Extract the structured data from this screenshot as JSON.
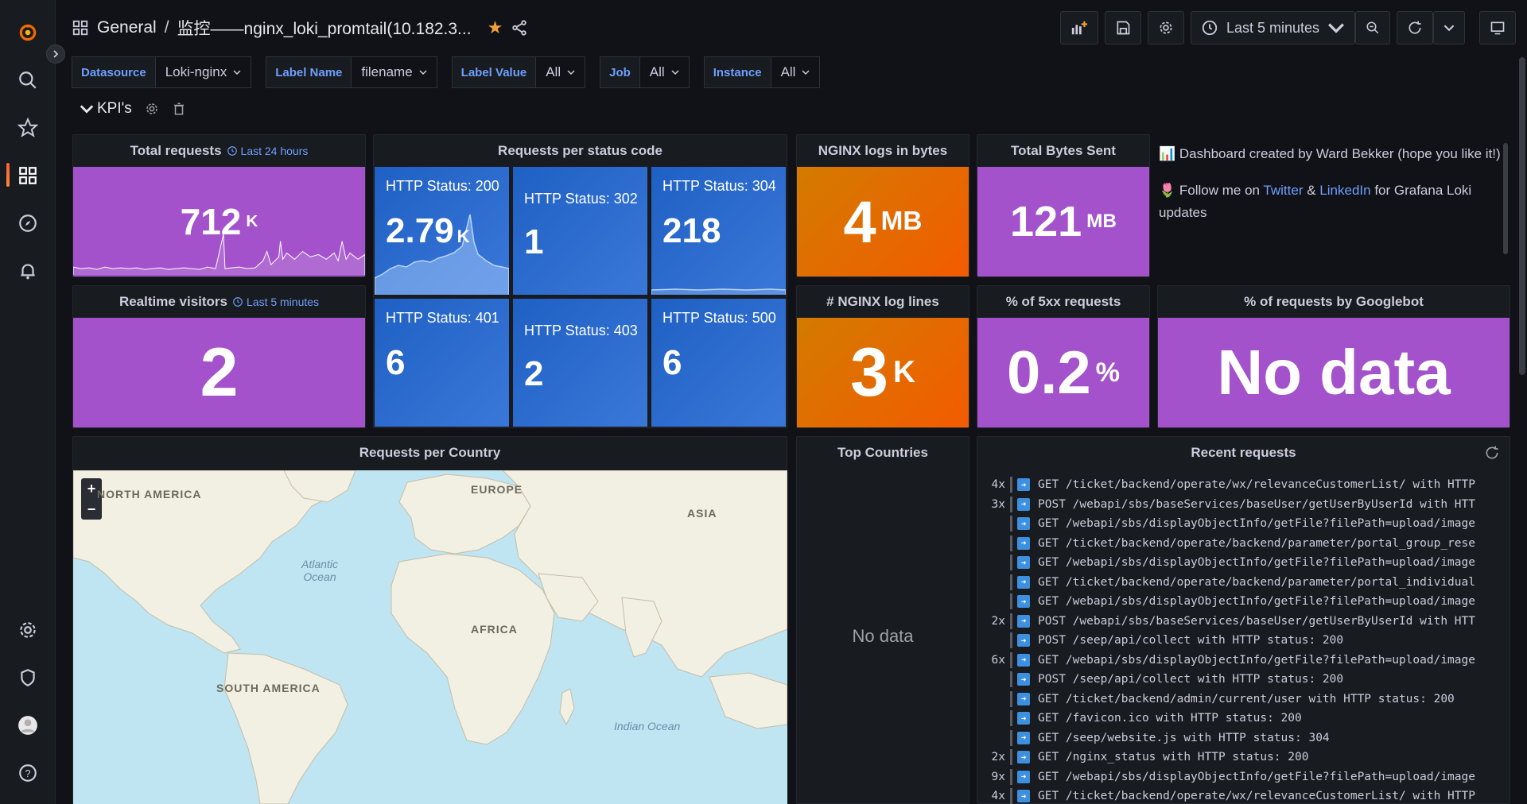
{
  "topbar": {
    "breadcrumb_folder": "General",
    "breadcrumb_sep": "/",
    "dashboard_title": "监控——nginx_loki_promtail(10.182.3...",
    "time_range": "Last 5 minutes"
  },
  "variables": [
    {
      "label": "Datasource",
      "value": "Loki-nginx"
    },
    {
      "label": "Label Name",
      "value": "filename"
    },
    {
      "label": "Label Value",
      "value": "All"
    },
    {
      "label": "Job",
      "value": "All"
    },
    {
      "label": "Instance",
      "value": "All"
    }
  ],
  "row": {
    "title": "KPI's"
  },
  "panels": {
    "total_requests": {
      "title": "Total requests",
      "time_info": "Last 24 hours",
      "value": "712",
      "unit": "K"
    },
    "status_code": {
      "title": "Requests per status code",
      "tiles": [
        {
          "label": "HTTP Status: 200",
          "value": "2.79",
          "unit": "K"
        },
        {
          "label": "HTTP Status: 302",
          "value": "1",
          "unit": ""
        },
        {
          "label": "HTTP Status: 304",
          "value": "218",
          "unit": ""
        },
        {
          "label": "HTTP Status: 401",
          "value": "6",
          "unit": ""
        },
        {
          "label": "HTTP Status: 403",
          "value": "2",
          "unit": ""
        },
        {
          "label": "HTTP Status: 500",
          "value": "6",
          "unit": ""
        }
      ]
    },
    "nginx_bytes": {
      "title": "NGINX logs in bytes",
      "value": "4",
      "unit": "MB"
    },
    "bytes_sent": {
      "title": "Total Bytes Sent",
      "value": "121",
      "unit": "MB"
    },
    "realtime": {
      "title": "Realtime visitors",
      "time_info": "Last 5 minutes",
      "value": "2"
    },
    "log_lines": {
      "title": "# NGINX log lines",
      "value": "3",
      "unit": "K"
    },
    "pct_5xx": {
      "title": "% of 5xx requests",
      "value": "0.2",
      "unit": "%"
    },
    "googlebot": {
      "title": "% of requests by Googlebot",
      "value": "No data"
    },
    "text": {
      "line1": "📊 Dashboard created by Ward Bekker (hope you like it!)",
      "line2_pre": "🌷 Follow me on",
      "twitter": "Twitter",
      "amp": "&",
      "linkedin": "LinkedIn",
      "line2_post": "for Grafana Loki updates"
    },
    "country": {
      "title": "Requests per Country"
    },
    "top_countries": {
      "title": "Top Countries",
      "nodata": "No data"
    },
    "recent": {
      "title": "Recent requests"
    }
  },
  "map_labels": {
    "north_america": "NORTH AMERICA",
    "europe": "EUROPE",
    "asia": "ASIA",
    "africa": "AFRICA",
    "south_america": "SOUTH AMERICA",
    "atlantic": "Atlantic Ocean",
    "indian": "Indian Ocean"
  },
  "logs": [
    {
      "count": "4x",
      "text": "GET /ticket/backend/operate/wx/relevanceCustomerList/ with HTTP"
    },
    {
      "count": "3x",
      "text": "POST /webapi/sbs/baseServices/baseUser/getUserByUserId with HTT"
    },
    {
      "count": "",
      "text": "GET /webapi/sbs/displayObjectInfo/getFile?filePath=upload/image"
    },
    {
      "count": "",
      "text": "GET /ticket/backend/operate/backend/parameter/portal_group_rese"
    },
    {
      "count": "",
      "text": "GET /webapi/sbs/displayObjectInfo/getFile?filePath=upload/image"
    },
    {
      "count": "",
      "text": "GET /ticket/backend/operate/backend/parameter/portal_individual"
    },
    {
      "count": "",
      "text": "GET /webapi/sbs/displayObjectInfo/getFile?filePath=upload/image"
    },
    {
      "count": "2x",
      "text": "POST /webapi/sbs/baseServices/baseUser/getUserByUserId with HTT"
    },
    {
      "count": "",
      "text": "POST /seep/api/collect with HTTP status: 200"
    },
    {
      "count": "6x",
      "text": "GET /webapi/sbs/displayObjectInfo/getFile?filePath=upload/image"
    },
    {
      "count": "",
      "text": "POST /seep/api/collect with HTTP status: 200"
    },
    {
      "count": "",
      "text": "GET /ticket/backend/admin/current/user with HTTP status: 200"
    },
    {
      "count": "",
      "text": "GET /favicon.ico with HTTP status: 200"
    },
    {
      "count": "",
      "text": "GET /seep/website.js with HTTP status: 304"
    },
    {
      "count": "2x",
      "text": "GET /nginx_status with HTTP status: 200"
    },
    {
      "count": "9x",
      "text": "GET /webapi/sbs/displayObjectInfo/getFile?filePath=upload/image"
    },
    {
      "count": "4x",
      "text": "GET /ticket/backend/operate/wx/relevanceCustomerList/ with HTTP"
    }
  ]
}
